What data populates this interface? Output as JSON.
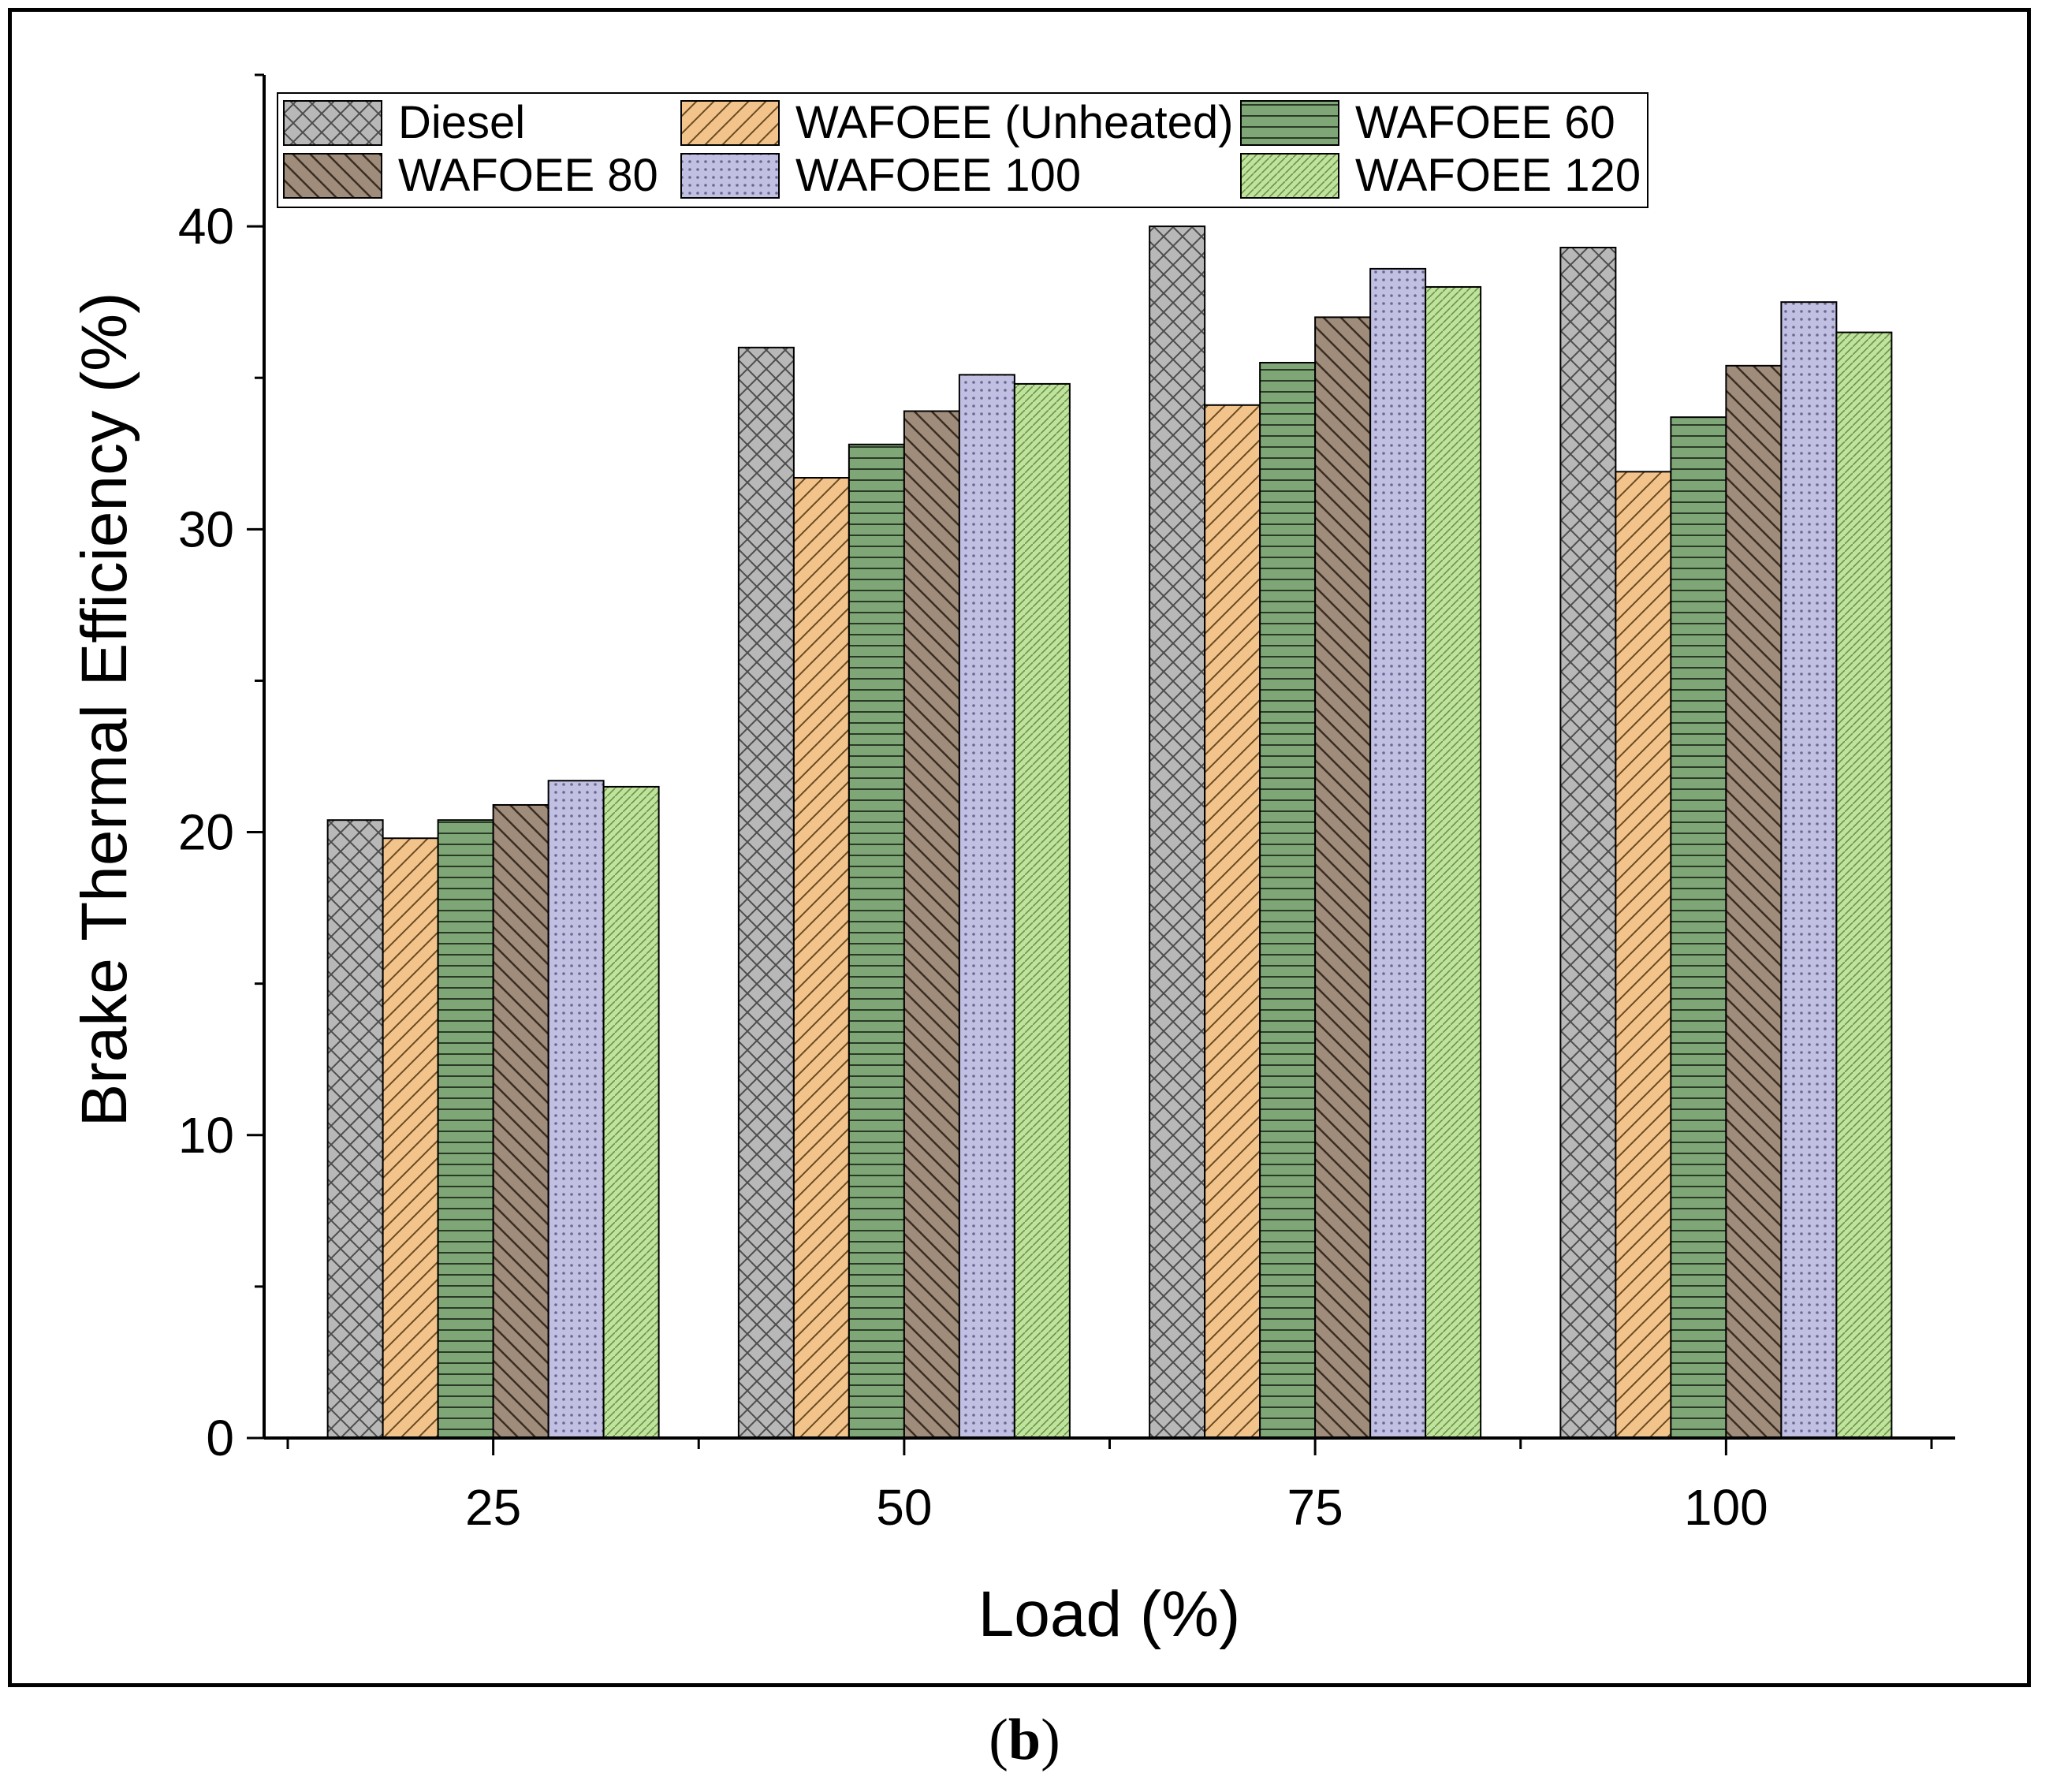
{
  "panel_label": {
    "open": "(",
    "letter": "b",
    "close": ")"
  },
  "chart_data": {
    "type": "bar",
    "title": "",
    "xlabel": "Load (%)",
    "ylabel": "Brake Thermal Efficiency (%)",
    "categories": [
      "25",
      "50",
      "75",
      "100"
    ],
    "ylim": [
      0,
      45
    ],
    "yticks": [
      0,
      10,
      20,
      30,
      40
    ],
    "grid": false,
    "legend_position": "top",
    "series": [
      {
        "name": "Diesel",
        "values": [
          20.4,
          36.0,
          40.0,
          39.3
        ],
        "color": "#b8b8b8",
        "pattern": "crosshatch"
      },
      {
        "name": "WAFOEE (Unheated)",
        "values": [
          19.8,
          31.7,
          34.1,
          31.9
        ],
        "color": "#f2c48c",
        "pattern": "diagonal-up"
      },
      {
        "name": "WAFOEE 60",
        "values": [
          20.4,
          32.8,
          35.5,
          33.7
        ],
        "color": "#7ea676",
        "pattern": "horizontal"
      },
      {
        "name": "WAFOEE 80",
        "values": [
          20.9,
          33.9,
          37.0,
          35.4
        ],
        "color": "#a08c7b",
        "pattern": "diagonal-down"
      },
      {
        "name": "WAFOEE 100",
        "values": [
          21.7,
          35.1,
          38.6,
          37.5
        ],
        "color": "#c1c0e3",
        "pattern": "dots"
      },
      {
        "name": "WAFOEE 120",
        "values": [
          21.5,
          34.8,
          38.0,
          36.5
        ],
        "color": "#bee39a",
        "pattern": "dense-diagonal"
      }
    ]
  }
}
